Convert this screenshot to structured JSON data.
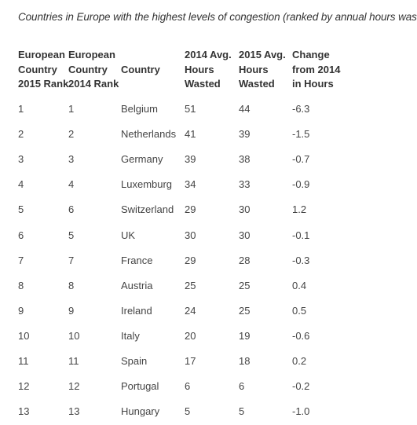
{
  "caption": "Countries in Europe with the highest levels of congestion (ranked by annual hours wasted):",
  "table": {
    "headers": [
      [
        "European",
        "Country",
        "2015 Rank"
      ],
      [
        "European",
        "Country",
        "2014 Rank"
      ],
      [
        "Country"
      ],
      [
        "2014 Avg.",
        "Hours",
        "Wasted"
      ],
      [
        "2015 Avg.",
        "Hours",
        "Wasted"
      ],
      [
        "Change",
        "from 2014",
        "in Hours"
      ]
    ],
    "rows": [
      [
        "1",
        "1",
        "Belgium",
        "51",
        "44",
        "-6.3"
      ],
      [
        "2",
        "2",
        "Netherlands",
        "41",
        "39",
        "-1.5"
      ],
      [
        "3",
        "3",
        "Germany",
        "39",
        "38",
        "-0.7"
      ],
      [
        "4",
        "4",
        "Luxemburg",
        "34",
        "33",
        "-0.9"
      ],
      [
        "5",
        "6",
        "Switzerland",
        "29",
        "30",
        "1.2"
      ],
      [
        "6",
        "5",
        "UK",
        "30",
        "30",
        "-0.1"
      ],
      [
        "7",
        "7",
        "France",
        "29",
        "28",
        "-0.3"
      ],
      [
        "8",
        "8",
        "Austria",
        "25",
        "25",
        "0.4"
      ],
      [
        "9",
        "9",
        "Ireland",
        "24",
        "25",
        "0.5"
      ],
      [
        "10",
        "10",
        "Italy",
        "20",
        "19",
        "-0.6"
      ],
      [
        "11",
        "11",
        "Spain",
        "17",
        "18",
        "0.2"
      ],
      [
        "12",
        "12",
        "Portugal",
        "6",
        "6",
        "-0.2"
      ],
      [
        "13",
        "13",
        "Hungary",
        "5",
        "5",
        "-1.0"
      ]
    ]
  }
}
